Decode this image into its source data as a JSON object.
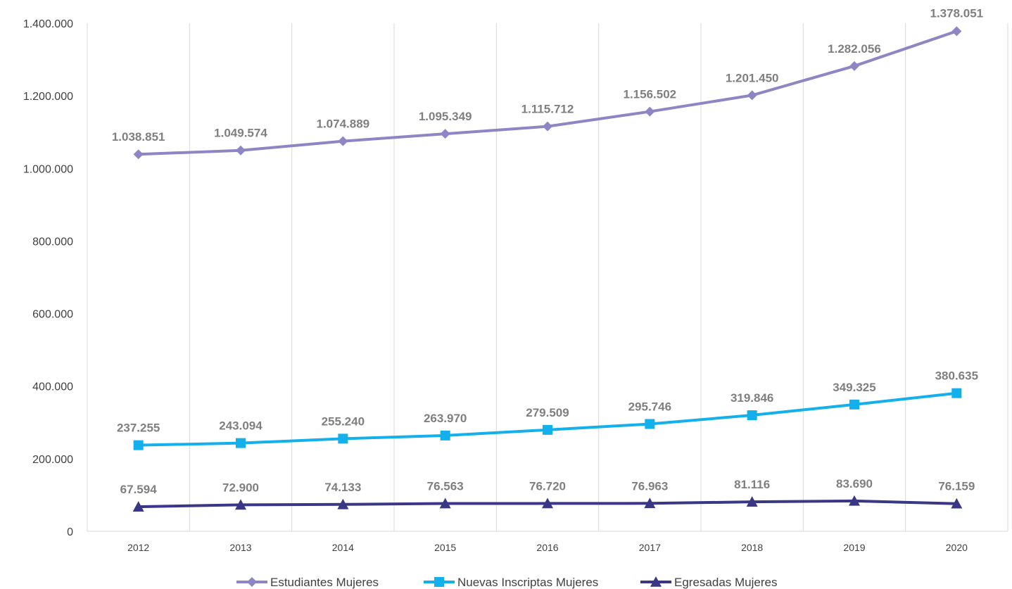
{
  "chart_data": {
    "type": "line",
    "categories": [
      "2012",
      "2013",
      "2014",
      "2015",
      "2016",
      "2017",
      "2018",
      "2019",
      "2020"
    ],
    "ylim": [
      0,
      1400000
    ],
    "yticks": [
      0,
      200000,
      400000,
      600000,
      800000,
      1000000,
      1200000,
      1400000
    ],
    "ytick_labels": [
      "0",
      "200.000",
      "400.000",
      "600.000",
      "800.000",
      "1.000.000",
      "1.200.000",
      "1.400.000"
    ],
    "grid": "vertical",
    "legend_position": "bottom",
    "series": [
      {
        "name": "Estudiantes Mujeres",
        "color": "#8e85c4",
        "marker": "diamond",
        "values": [
          1038851,
          1049574,
          1074889,
          1095349,
          1115712,
          1156502,
          1201450,
          1282056,
          1378051
        ],
        "labels": [
          "1.038.851",
          "1.049.574",
          "1.074.889",
          "1.095.349",
          "1.115.712",
          "1.156.502",
          "1.201.450",
          "1.282.056",
          "1.378.051"
        ]
      },
      {
        "name": "Nuevas Inscriptas Mujeres",
        "color": "#13b0ec",
        "marker": "square",
        "values": [
          237255,
          243094,
          255240,
          263970,
          279509,
          295746,
          319846,
          349325,
          380635
        ],
        "labels": [
          "237.255",
          "243.094",
          "255.240",
          "263.970",
          "279.509",
          "295.746",
          "319.846",
          "349.325",
          "380.635"
        ]
      },
      {
        "name": "Egresadas Mujeres",
        "color": "#3a3786",
        "marker": "triangle",
        "values": [
          67594,
          72900,
          74133,
          76563,
          76720,
          76963,
          81116,
          83690,
          76159
        ],
        "labels": [
          "67.594",
          "72.900",
          "74.133",
          "76.563",
          "76.720",
          "76.963",
          "81.116",
          "83.690",
          "76.159"
        ]
      }
    ]
  }
}
